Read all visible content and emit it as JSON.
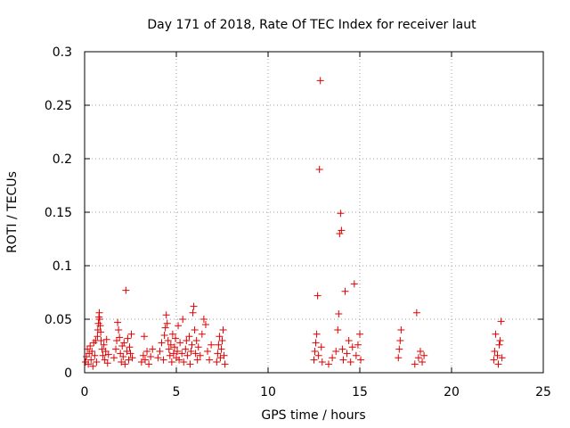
{
  "chart_data": {
    "type": "scatter",
    "title": "Day 171 of 2018, Rate Of TEC Index for receiver laut",
    "xlabel": "GPS time / hours",
    "ylabel": "ROTI / TECUs",
    "xlim": [
      0,
      25
    ],
    "ylim": [
      0,
      0.3
    ],
    "xticks": [
      0,
      5,
      10,
      15,
      20,
      25
    ],
    "xtick_labels": [
      "0",
      "5",
      "10",
      "15",
      "20",
      "25"
    ],
    "yticks": [
      0,
      0.05,
      0.1,
      0.15,
      0.2,
      0.25,
      0.3
    ],
    "ytick_labels": [
      "0",
      "0.05",
      "0.1",
      "0.15",
      "0.2",
      "0.25",
      "0.3"
    ],
    "grid": true,
    "marker": "plus",
    "color": "#e00000",
    "series": [
      {
        "name": "ROTI",
        "points": [
          [
            0.05,
            0.01
          ],
          [
            0.1,
            0.015
          ],
          [
            0.15,
            0.022
          ],
          [
            0.2,
            0.008
          ],
          [
            0.25,
            0.018
          ],
          [
            0.3,
            0.025
          ],
          [
            0.35,
            0.012
          ],
          [
            0.4,
            0.02
          ],
          [
            0.45,
            0.006
          ],
          [
            0.5,
            0.028
          ],
          [
            0.55,
            0.016
          ],
          [
            0.6,
            0.03
          ],
          [
            0.65,
            0.01
          ],
          [
            0.7,
            0.034
          ],
          [
            0.72,
            0.04
          ],
          [
            0.75,
            0.046
          ],
          [
            0.78,
            0.052
          ],
          [
            0.8,
            0.056
          ],
          [
            0.82,
            0.05
          ],
          [
            0.85,
            0.044
          ],
          [
            0.88,
            0.038
          ],
          [
            0.9,
            0.03
          ],
          [
            0.95,
            0.022
          ],
          [
            1.0,
            0.016
          ],
          [
            1.05,
            0.026
          ],
          [
            1.1,
            0.012
          ],
          [
            1.15,
            0.02
          ],
          [
            1.2,
            0.031
          ],
          [
            1.25,
            0.009
          ],
          [
            1.3,
            0.017
          ],
          [
            1.6,
            0.014
          ],
          [
            1.7,
            0.022
          ],
          [
            1.75,
            0.03
          ],
          [
            1.8,
            0.047
          ],
          [
            1.85,
            0.04
          ],
          [
            1.9,
            0.033
          ],
          [
            1.95,
            0.018
          ],
          [
            2.0,
            0.01
          ],
          [
            2.05,
            0.025
          ],
          [
            2.1,
            0.015
          ],
          [
            2.15,
            0.028
          ],
          [
            2.2,
            0.008
          ],
          [
            2.25,
            0.077
          ],
          [
            2.3,
            0.02
          ],
          [
            2.35,
            0.032
          ],
          [
            2.4,
            0.012
          ],
          [
            2.45,
            0.024
          ],
          [
            2.5,
            0.018
          ],
          [
            2.55,
            0.036
          ],
          [
            2.6,
            0.014
          ],
          [
            3.1,
            0.01
          ],
          [
            3.2,
            0.016
          ],
          [
            3.25,
            0.034
          ],
          [
            3.3,
            0.012
          ],
          [
            3.4,
            0.02
          ],
          [
            3.5,
            0.008
          ],
          [
            3.6,
            0.015
          ],
          [
            3.7,
            0.022
          ],
          [
            4.0,
            0.014
          ],
          [
            4.1,
            0.02
          ],
          [
            4.2,
            0.028
          ],
          [
            4.3,
            0.012
          ],
          [
            4.35,
            0.035
          ],
          [
            4.4,
            0.042
          ],
          [
            4.45,
            0.054
          ],
          [
            4.5,
            0.046
          ],
          [
            4.55,
            0.03
          ],
          [
            4.6,
            0.022
          ],
          [
            4.65,
            0.016
          ],
          [
            4.7,
            0.026
          ],
          [
            4.75,
            0.01
          ],
          [
            4.8,
            0.036
          ],
          [
            4.85,
            0.018
          ],
          [
            4.9,
            0.024
          ],
          [
            4.95,
            0.032
          ],
          [
            5.0,
            0.014
          ],
          [
            5.05,
            0.02
          ],
          [
            5.1,
            0.044
          ],
          [
            5.15,
            0.012
          ],
          [
            5.2,
            0.028
          ],
          [
            5.3,
            0.018
          ],
          [
            5.35,
            0.05
          ],
          [
            5.4,
            0.01
          ],
          [
            5.5,
            0.022
          ],
          [
            5.55,
            0.03
          ],
          [
            5.6,
            0.016
          ],
          [
            5.7,
            0.034
          ],
          [
            5.75,
            0.008
          ],
          [
            5.8,
            0.02
          ],
          [
            5.85,
            0.026
          ],
          [
            5.9,
            0.056
          ],
          [
            5.95,
            0.062
          ],
          [
            6.0,
            0.04
          ],
          [
            6.05,
            0.018
          ],
          [
            6.1,
            0.03
          ],
          [
            6.15,
            0.012
          ],
          [
            6.2,
            0.024
          ],
          [
            6.3,
            0.016
          ],
          [
            6.4,
            0.036
          ],
          [
            6.5,
            0.05
          ],
          [
            6.6,
            0.045
          ],
          [
            6.7,
            0.02
          ],
          [
            6.8,
            0.012
          ],
          [
            6.9,
            0.026
          ],
          [
            7.2,
            0.01
          ],
          [
            7.25,
            0.018
          ],
          [
            7.3,
            0.026
          ],
          [
            7.35,
            0.034
          ],
          [
            7.4,
            0.014
          ],
          [
            7.45,
            0.022
          ],
          [
            7.5,
            0.03
          ],
          [
            7.55,
            0.04
          ],
          [
            7.6,
            0.016
          ],
          [
            7.65,
            0.008
          ],
          [
            12.5,
            0.012
          ],
          [
            12.55,
            0.02
          ],
          [
            12.6,
            0.028
          ],
          [
            12.65,
            0.036
          ],
          [
            12.7,
            0.072
          ],
          [
            12.75,
            0.016
          ],
          [
            12.8,
            0.19
          ],
          [
            12.85,
            0.273
          ],
          [
            12.9,
            0.024
          ],
          [
            12.95,
            0.01
          ],
          [
            13.3,
            0.008
          ],
          [
            13.5,
            0.014
          ],
          [
            13.7,
            0.02
          ],
          [
            13.8,
            0.04
          ],
          [
            13.85,
            0.055
          ],
          [
            13.9,
            0.13
          ],
          [
            13.95,
            0.149
          ],
          [
            14.0,
            0.133
          ],
          [
            14.05,
            0.022
          ],
          [
            14.1,
            0.012
          ],
          [
            14.2,
            0.076
          ],
          [
            14.3,
            0.018
          ],
          [
            14.4,
            0.03
          ],
          [
            14.5,
            0.01
          ],
          [
            14.6,
            0.024
          ],
          [
            14.7,
            0.083
          ],
          [
            14.8,
            0.016
          ],
          [
            14.9,
            0.026
          ],
          [
            15.0,
            0.036
          ],
          [
            15.05,
            0.012
          ],
          [
            17.1,
            0.014
          ],
          [
            17.15,
            0.022
          ],
          [
            17.2,
            0.03
          ],
          [
            17.25,
            0.04
          ],
          [
            18.0,
            0.008
          ],
          [
            18.1,
            0.056
          ],
          [
            18.2,
            0.014
          ],
          [
            18.3,
            0.02
          ],
          [
            18.4,
            0.01
          ],
          [
            18.5,
            0.016
          ],
          [
            22.3,
            0.012
          ],
          [
            22.35,
            0.02
          ],
          [
            22.4,
            0.036
          ],
          [
            22.5,
            0.016
          ],
          [
            22.55,
            0.008
          ],
          [
            22.6,
            0.026
          ],
          [
            22.65,
            0.03
          ],
          [
            22.7,
            0.048
          ],
          [
            22.75,
            0.014
          ]
        ]
      }
    ]
  }
}
